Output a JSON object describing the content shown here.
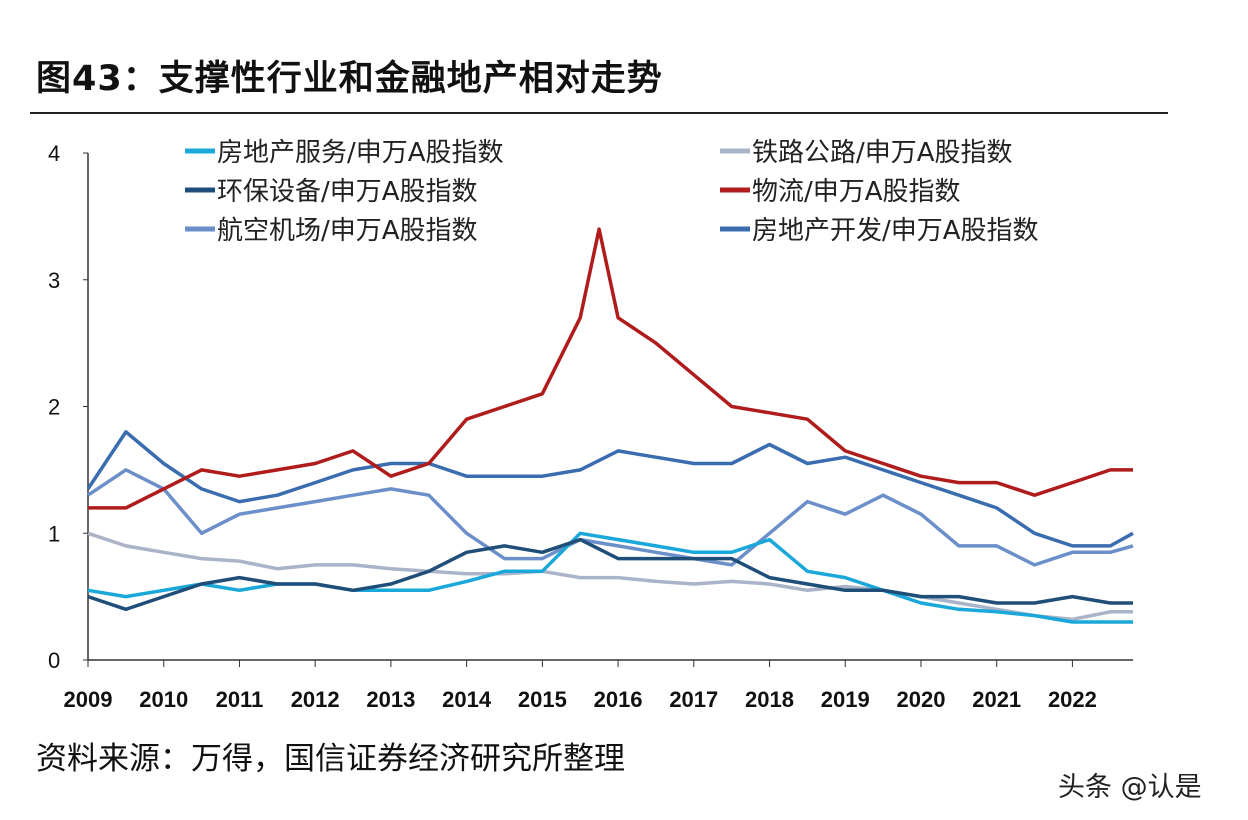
{
  "title": "图43：支撑性行业和金融地产相对走势",
  "source": "资料来源：万得，国信证券经济研究所整理",
  "watermark": "头条 @认是",
  "chart_data": {
    "type": "line",
    "title": "",
    "xlabel": "",
    "ylabel": "",
    "xlim": [
      2009,
      2022.8
    ],
    "ylim": [
      0,
      4
    ],
    "yticks": [
      "0",
      "1",
      "2",
      "3",
      "4"
    ],
    "xticks": [
      "2009",
      "2010",
      "2011",
      "2012",
      "2013",
      "2014",
      "2015",
      "2016",
      "2017",
      "2018",
      "2019",
      "2020",
      "2021",
      "2022"
    ],
    "grid": false,
    "legend_position": "top",
    "series": [
      {
        "name": "房地产服务/申万A股指数",
        "color": "#1aa7d9",
        "x": [
          2009,
          2009.5,
          2010,
          2010.5,
          2011,
          2011.5,
          2012,
          2012.5,
          2013,
          2013.5,
          2014,
          2014.5,
          2015,
          2015.5,
          2016,
          2016.5,
          2017,
          2017.5,
          2018,
          2018.5,
          2019,
          2019.5,
          2020,
          2020.5,
          2021,
          2021.5,
          2022,
          2022.5,
          2022.8
        ],
        "y": [
          0.55,
          0.5,
          0.55,
          0.6,
          0.55,
          0.6,
          0.6,
          0.55,
          0.55,
          0.55,
          0.62,
          0.7,
          0.7,
          1.0,
          0.95,
          0.9,
          0.85,
          0.85,
          0.95,
          0.7,
          0.65,
          0.55,
          0.45,
          0.4,
          0.38,
          0.35,
          0.3,
          0.3,
          0.3
        ]
      },
      {
        "name": "铁路公路/申万A股指数",
        "color": "#a9b4c8",
        "x": [
          2009,
          2009.5,
          2010,
          2010.5,
          2011,
          2011.5,
          2012,
          2012.5,
          2013,
          2013.5,
          2014,
          2014.5,
          2015,
          2015.5,
          2016,
          2016.5,
          2017,
          2017.5,
          2018,
          2018.5,
          2019,
          2019.5,
          2020,
          2020.5,
          2021,
          2021.5,
          2022,
          2022.5,
          2022.8
        ],
        "y": [
          1.0,
          0.9,
          0.85,
          0.8,
          0.78,
          0.72,
          0.75,
          0.75,
          0.72,
          0.7,
          0.68,
          0.68,
          0.7,
          0.65,
          0.65,
          0.62,
          0.6,
          0.62,
          0.6,
          0.55,
          0.58,
          0.55,
          0.5,
          0.45,
          0.4,
          0.35,
          0.32,
          0.38,
          0.38
        ]
      },
      {
        "name": "环保设备/申万A股指数",
        "color": "#1f4e79",
        "x": [
          2009,
          2009.5,
          2010,
          2010.5,
          2011,
          2011.5,
          2012,
          2012.5,
          2013,
          2013.5,
          2014,
          2014.5,
          2015,
          2015.5,
          2016,
          2016.5,
          2017,
          2017.5,
          2018,
          2018.5,
          2019,
          2019.5,
          2020,
          2020.5,
          2021,
          2021.5,
          2022,
          2022.5,
          2022.8
        ],
        "y": [
          0.5,
          0.4,
          0.5,
          0.6,
          0.65,
          0.6,
          0.6,
          0.55,
          0.6,
          0.7,
          0.85,
          0.9,
          0.85,
          0.95,
          0.8,
          0.8,
          0.8,
          0.8,
          0.65,
          0.6,
          0.55,
          0.55,
          0.5,
          0.5,
          0.45,
          0.45,
          0.5,
          0.45,
          0.45
        ]
      },
      {
        "name": "物流/申万A股指数",
        "color": "#b01c1c",
        "x": [
          2009,
          2009.5,
          2010,
          2010.5,
          2011,
          2011.5,
          2012,
          2012.5,
          2013,
          2013.5,
          2014,
          2014.5,
          2015,
          2015.5,
          2015.75,
          2016,
          2016.5,
          2017,
          2017.5,
          2018,
          2018.5,
          2019,
          2019.5,
          2020,
          2020.5,
          2021,
          2021.5,
          2022,
          2022.5,
          2022.8
        ],
        "y": [
          1.2,
          1.2,
          1.35,
          1.5,
          1.45,
          1.5,
          1.55,
          1.65,
          1.45,
          1.55,
          1.9,
          2.0,
          2.1,
          2.7,
          3.4,
          2.7,
          2.5,
          2.25,
          2.0,
          1.95,
          1.9,
          1.65,
          1.55,
          1.45,
          1.4,
          1.4,
          1.3,
          1.4,
          1.5,
          1.5
        ]
      },
      {
        "name": "航空机场/申万A股指数",
        "color": "#6b8fc9",
        "x": [
          2009,
          2009.5,
          2010,
          2010.5,
          2011,
          2011.5,
          2012,
          2012.5,
          2013,
          2013.5,
          2014,
          2014.5,
          2015,
          2015.5,
          2016,
          2016.5,
          2017,
          2017.5,
          2018,
          2018.5,
          2019,
          2019.5,
          2020,
          2020.5,
          2021,
          2021.5,
          2022,
          2022.5,
          2022.8
        ],
        "y": [
          1.3,
          1.5,
          1.35,
          1.0,
          1.15,
          1.2,
          1.25,
          1.3,
          1.35,
          1.3,
          1.0,
          0.8,
          0.8,
          0.95,
          0.9,
          0.85,
          0.8,
          0.75,
          1.0,
          1.25,
          1.15,
          1.3,
          1.15,
          0.9,
          0.9,
          0.75,
          0.85,
          0.85,
          0.9
        ]
      },
      {
        "name": "房地产开发/申万A股指数",
        "color": "#3a6db0",
        "x": [
          2009,
          2009.5,
          2010,
          2010.5,
          2011,
          2011.5,
          2012,
          2012.5,
          2013,
          2013.5,
          2014,
          2014.5,
          2015,
          2015.5,
          2016,
          2016.5,
          2017,
          2017.5,
          2018,
          2018.5,
          2019,
          2019.5,
          2020,
          2020.5,
          2021,
          2021.5,
          2022,
          2022.5,
          2022.8
        ],
        "y": [
          1.35,
          1.8,
          1.55,
          1.35,
          1.25,
          1.3,
          1.4,
          1.5,
          1.55,
          1.55,
          1.45,
          1.45,
          1.45,
          1.5,
          1.65,
          1.6,
          1.55,
          1.55,
          1.7,
          1.55,
          1.6,
          1.5,
          1.4,
          1.3,
          1.2,
          1.0,
          0.9,
          0.9,
          1.0
        ]
      }
    ]
  }
}
